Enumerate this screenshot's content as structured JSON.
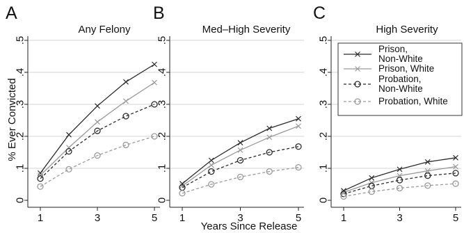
{
  "figure": {
    "panels": [
      "A",
      "B",
      "C"
    ],
    "ylabel": "% Ever Convicted",
    "xlabel": "Years Since Release",
    "legend": [
      {
        "label_lines": [
          "Prison,",
          "Non-White"
        ],
        "color": "#2b2b2b",
        "marker": "x",
        "dash": false
      },
      {
        "label_lines": [
          "Prison, White"
        ],
        "color": "#9a9a9a",
        "marker": "x",
        "dash": false
      },
      {
        "label_lines": [
          "Probation,",
          "Non-White"
        ],
        "color": "#2b2b2b",
        "marker": "o",
        "dash": true
      },
      {
        "label_lines": [
          "Probation, White"
        ],
        "color": "#9a9a9a",
        "marker": "o",
        "dash": true
      }
    ]
  },
  "chart_data": [
    {
      "type": "line",
      "panel": "A",
      "title": "Any Felony",
      "xlabel": "",
      "ylabel": "% Ever Convicted",
      "x": [
        1,
        2,
        3,
        4,
        5
      ],
      "xticks": [
        "1",
        "3",
        "5"
      ],
      "yticks": [
        "0",
        ".1",
        ".2",
        ".3",
        ".4",
        ".5"
      ],
      "ylim": [
        0,
        0.5
      ],
      "grid": true,
      "series": [
        {
          "name": "Prison, Non-White",
          "values": [
            0.085,
            0.205,
            0.295,
            0.37,
            0.425
          ]
        },
        {
          "name": "Prison, White",
          "values": [
            0.078,
            0.165,
            0.245,
            0.31,
            0.368
          ]
        },
        {
          "name": "Probation, Non-White",
          "values": [
            0.068,
            0.153,
            0.217,
            0.263,
            0.3
          ]
        },
        {
          "name": "Probation, White",
          "values": [
            0.043,
            0.097,
            0.14,
            0.173,
            0.2
          ]
        }
      ]
    },
    {
      "type": "line",
      "panel": "B",
      "title": "Med–High Severity",
      "xlabel": "Years Since Release",
      "ylabel": "",
      "x": [
        1,
        2,
        3,
        4,
        5
      ],
      "xticks": [
        "1",
        "3",
        "5"
      ],
      "yticks": [
        "0",
        ".1",
        ".2",
        ".3",
        ".4",
        ".5"
      ],
      "ylim": [
        0,
        0.5
      ],
      "grid": true,
      "series": [
        {
          "name": "Prison, Non-White",
          "values": [
            0.052,
            0.125,
            0.18,
            0.225,
            0.255
          ]
        },
        {
          "name": "Prison, White",
          "values": [
            0.045,
            0.11,
            0.157,
            0.197,
            0.232
          ]
        },
        {
          "name": "Probation, Non-White",
          "values": [
            0.04,
            0.09,
            0.125,
            0.15,
            0.168
          ]
        },
        {
          "name": "Probation, White",
          "values": [
            0.022,
            0.05,
            0.073,
            0.09,
            0.103
          ]
        }
      ]
    },
    {
      "type": "line",
      "panel": "C",
      "title": "High Severity",
      "xlabel": "",
      "ylabel": "",
      "x": [
        1,
        2,
        3,
        4,
        5
      ],
      "xticks": [
        "1",
        "3",
        "5"
      ],
      "yticks": [
        "0",
        ".1",
        ".2",
        ".3",
        ".4",
        ".5"
      ],
      "ylim": [
        0,
        0.5
      ],
      "grid": true,
      "legend_position": "top-right",
      "series": [
        {
          "name": "Prison, Non-White",
          "values": [
            0.03,
            0.07,
            0.097,
            0.12,
            0.133
          ]
        },
        {
          "name": "Prison, White",
          "values": [
            0.025,
            0.055,
            0.077,
            0.092,
            0.105
          ]
        },
        {
          "name": "Probation, Non-White",
          "values": [
            0.02,
            0.045,
            0.063,
            0.077,
            0.085
          ]
        },
        {
          "name": "Probation, White",
          "values": [
            0.012,
            0.027,
            0.038,
            0.046,
            0.052
          ]
        }
      ]
    }
  ]
}
